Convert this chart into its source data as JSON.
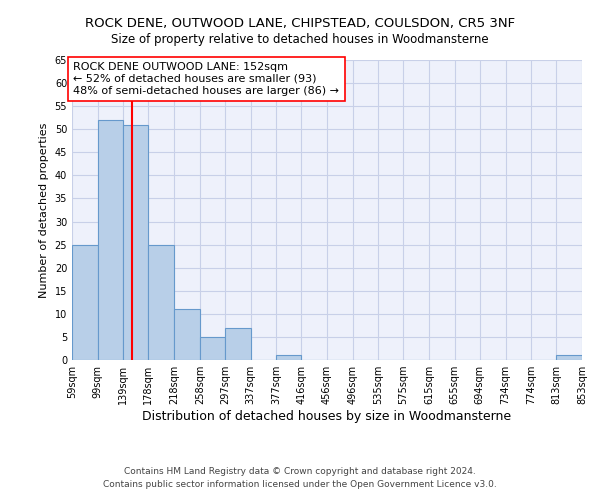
{
  "title1": "ROCK DENE, OUTWOOD LANE, CHIPSTEAD, COULSDON, CR5 3NF",
  "title2": "Size of property relative to detached houses in Woodmansterne",
  "xlabel": "Distribution of detached houses by size in Woodmansterne",
  "ylabel": "Number of detached properties",
  "footer1": "Contains HM Land Registry data © Crown copyright and database right 2024.",
  "footer2": "Contains public sector information licensed under the Open Government Licence v3.0.",
  "bin_edges": [
    59,
    99,
    139,
    178,
    218,
    258,
    297,
    337,
    377,
    416,
    456,
    496,
    535,
    575,
    615,
    655,
    694,
    734,
    774,
    813,
    853
  ],
  "bin_labels": [
    "59sqm",
    "99sqm",
    "139sqm",
    "178sqm",
    "218sqm",
    "258sqm",
    "297sqm",
    "337sqm",
    "377sqm",
    "416sqm",
    "456sqm",
    "496sqm",
    "535sqm",
    "575sqm",
    "615sqm",
    "655sqm",
    "694sqm",
    "734sqm",
    "774sqm",
    "813sqm",
    "853sqm"
  ],
  "bar_values": [
    25,
    52,
    51,
    25,
    11,
    5,
    7,
    0,
    1,
    0,
    0,
    0,
    0,
    0,
    0,
    0,
    0,
    0,
    0,
    1
  ],
  "bar_color": "#b8cfe8",
  "bar_edge_color": "#6699cc",
  "red_line_x": 152,
  "annotation_title": "ROCK DENE OUTWOOD LANE: 152sqm",
  "annotation_line2": "← 52% of detached houses are smaller (93)",
  "annotation_line3": "48% of semi-detached houses are larger (86) →",
  "ylim": [
    0,
    65
  ],
  "yticks": [
    0,
    5,
    10,
    15,
    20,
    25,
    30,
    35,
    40,
    45,
    50,
    55,
    60,
    65
  ],
  "bg_color": "#eef1fb",
  "grid_color": "#c8d0e8",
  "title1_fontsize": 9.5,
  "title2_fontsize": 8.5,
  "ylabel_fontsize": 8,
  "xlabel_fontsize": 9,
  "tick_fontsize": 7,
  "ann_fontsize": 8,
  "footer_fontsize": 6.5
}
